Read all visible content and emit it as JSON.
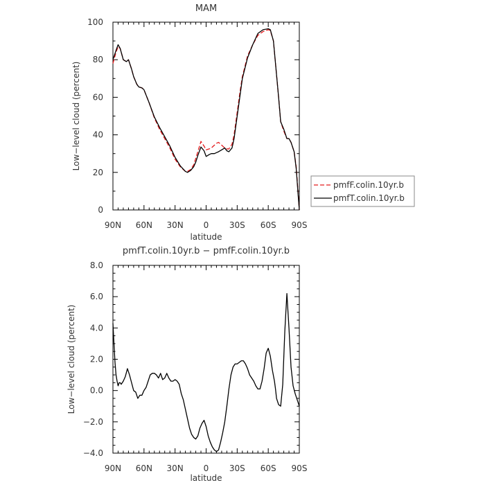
{
  "chart_data": [
    {
      "type": "line",
      "title": "MAM",
      "xlabel": "latitude",
      "ylabel": "Low−level cloud (percent)",
      "xlim": [
        90,
        -90
      ],
      "ylim": [
        0,
        100
      ],
      "x_ticks": [
        90,
        60,
        30,
        0,
        -30,
        -60,
        -90
      ],
      "x_tick_labels": [
        "90N",
        "60N",
        "30N",
        "0",
        "30S",
        "60S",
        "90S"
      ],
      "y_ticks": [
        0,
        20,
        40,
        60,
        80,
        100
      ],
      "y_tick_labels": [
        "0",
        "20",
        "40",
        "60",
        "80",
        "100"
      ],
      "grid": false,
      "legend": {
        "placement": "right",
        "entries": [
          {
            "label": "pmfF.colin.10yr.b",
            "color": "#e41a1c",
            "dash": "dashed"
          },
          {
            "label": "pmfT.colin.10yr.b",
            "color": "#000000",
            "dash": "solid"
          }
        ]
      },
      "series": [
        {
          "name": "pmfF.colin.10yr.b",
          "color": "#e41a1c",
          "dash": "dashed",
          "x": [
            90,
            87,
            85,
            83,
            80,
            77,
            75,
            72,
            70,
            67,
            65,
            62,
            60,
            55,
            50,
            45,
            40,
            35,
            30,
            25,
            20,
            18,
            15,
            12,
            10,
            8,
            5,
            2,
            0,
            -3,
            -5,
            -8,
            -10,
            -12,
            -15,
            -18,
            -20,
            -22,
            -25,
            -27,
            -30,
            -33,
            -35,
            -40,
            -45,
            -50,
            -55,
            -60,
            -62,
            -65,
            -67,
            -70,
            -72,
            -75,
            -78,
            -80,
            -82,
            -85,
            -87,
            -89,
            -90
          ],
          "y": [
            78,
            84,
            87,
            86,
            80,
            79,
            80,
            75,
            71,
            67,
            65.5,
            65,
            64,
            57,
            49,
            43,
            38,
            33,
            27,
            23,
            20.5,
            20.5,
            21.5,
            24,
            27.5,
            31,
            36.5,
            34,
            32,
            32.5,
            33,
            34.5,
            35.5,
            36,
            34.5,
            33,
            32.5,
            32.5,
            35,
            40,
            52,
            64,
            71,
            82,
            88,
            93,
            95,
            96,
            95.5,
            90,
            78,
            60,
            47,
            42,
            38,
            38,
            36,
            31,
            23,
            8,
            0
          ]
        },
        {
          "name": "pmfT.colin.10yr.b",
          "color": "#000000",
          "dash": "solid",
          "x": [
            90,
            87,
            85,
            83,
            80,
            77,
            75,
            72,
            70,
            67,
            65,
            62,
            60,
            55,
            50,
            45,
            40,
            35,
            30,
            25,
            20,
            18,
            15,
            12,
            10,
            8,
            5,
            2,
            0,
            -3,
            -5,
            -8,
            -10,
            -12,
            -15,
            -18,
            -20,
            -22,
            -25,
            -27,
            -30,
            -33,
            -35,
            -40,
            -45,
            -50,
            -55,
            -60,
            -62,
            -65,
            -67,
            -70,
            -72,
            -75,
            -78,
            -80,
            -82,
            -85,
            -87,
            -89,
            -90
          ],
          "y": [
            80,
            85,
            88,
            86,
            80,
            79,
            80,
            75,
            71,
            67,
            65.5,
            65,
            64,
            57,
            49.5,
            44,
            39,
            34,
            28,
            23.5,
            20.5,
            20,
            21,
            23,
            25.5,
            29,
            33.5,
            31.5,
            28.5,
            29.5,
            30,
            30,
            30.5,
            31,
            32,
            33,
            31.5,
            31,
            33,
            38,
            50,
            62,
            70,
            81,
            88,
            94,
            96,
            96.5,
            96,
            90,
            78,
            60,
            47,
            43,
            38,
            38,
            36,
            31,
            22,
            7,
            0
          ]
        }
      ]
    },
    {
      "type": "line",
      "title": "pmfT.colin.10yr.b − pmfF.colin.10yr.b",
      "xlabel": "latitude",
      "ylabel": "Low−level cloud (percent)",
      "xlim": [
        90,
        -90
      ],
      "ylim": [
        -4,
        8
      ],
      "x_ticks": [
        90,
        60,
        30,
        0,
        -30,
        -60,
        -90
      ],
      "x_tick_labels": [
        "90N",
        "60N",
        "30N",
        "0",
        "30S",
        "60S",
        "90S"
      ],
      "y_ticks": [
        -4,
        -2,
        0,
        2,
        4,
        6,
        8
      ],
      "y_tick_labels": [
        "−4.0",
        "−2.0",
        "0.0",
        "2.0",
        "4.0",
        "6.0",
        "8.0"
      ],
      "grid": false,
      "series": [
        {
          "color": "#000000",
          "dash": "solid",
          "x": [
            90,
            89,
            88,
            87,
            86,
            85,
            84,
            83,
            82,
            80,
            78,
            76,
            74,
            72,
            70,
            68,
            66,
            64,
            62,
            60,
            58,
            56,
            54,
            52,
            50,
            48,
            46,
            44,
            42,
            40,
            38,
            36,
            34,
            32,
            30,
            28,
            26,
            24,
            22,
            20,
            18,
            16,
            14,
            12,
            10,
            8,
            6,
            4,
            2,
            0,
            -2,
            -4,
            -6,
            -8,
            -10,
            -12,
            -14,
            -16,
            -18,
            -20,
            -22,
            -24,
            -26,
            -28,
            -30,
            -32,
            -34,
            -36,
            -38,
            -40,
            -42,
            -44,
            -46,
            -48,
            -50,
            -52,
            -54,
            -56,
            -58,
            -60,
            -62,
            -64,
            -66,
            -67,
            -68,
            -70,
            -72,
            -74,
            -76,
            -78,
            -80,
            -82,
            -84,
            -86,
            -87,
            -88,
            -89,
            -90
          ],
          "y": [
            4.3,
            3.0,
            1.8,
            1.0,
            0.6,
            0.3,
            0.5,
            0.5,
            0.4,
            0.6,
            0.9,
            1.4,
            1.0,
            0.5,
            0.0,
            -0.1,
            -0.5,
            -0.3,
            -0.3,
            0.0,
            0.2,
            0.6,
            1.0,
            1.1,
            1.1,
            1.0,
            0.8,
            1.1,
            0.7,
            0.8,
            1.1,
            0.8,
            0.6,
            0.6,
            0.7,
            0.6,
            0.4,
            -0.2,
            -0.6,
            -1.2,
            -1.8,
            -2.4,
            -2.8,
            -3.0,
            -3.1,
            -2.9,
            -2.4,
            -2.1,
            -1.9,
            -2.3,
            -2.9,
            -3.3,
            -3.6,
            -3.8,
            -3.9,
            -3.8,
            -3.3,
            -2.7,
            -2.0,
            -1.0,
            0.1,
            1.0,
            1.5,
            1.7,
            1.7,
            1.8,
            1.9,
            1.9,
            1.7,
            1.4,
            1.0,
            0.8,
            0.6,
            0.3,
            0.1,
            0.1,
            0.6,
            1.4,
            2.4,
            2.7,
            2.2,
            1.3,
            0.6,
            0.1,
            -0.5,
            -0.9,
            -1.0,
            0.4,
            3.8,
            6.2,
            4.0,
            1.5,
            0.3,
            -0.2,
            -0.4,
            -0.6,
            -0.8,
            -1.0
          ]
        }
      ]
    }
  ]
}
